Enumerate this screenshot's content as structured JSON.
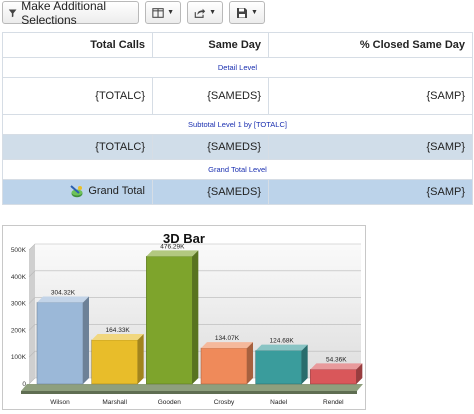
{
  "toolbar": {
    "make_selections_label": "Make Additional Selections",
    "layout_icon": "columns-icon",
    "share_icon": "share-icon",
    "save_icon": "save-icon"
  },
  "table": {
    "headers": [
      "Total Calls",
      "Same Day",
      "% Closed Same Day"
    ],
    "detail_level_label": "Detail Level",
    "detail_row": [
      "{TOTALC}",
      "{SAMEDS}",
      "{SAMP}"
    ],
    "subtotal_level_label": "Subtotal Level 1 by [TOTALC]",
    "subtotal_row": [
      "{TOTALC}",
      "{SAMEDS}",
      "{SAMP}"
    ],
    "grand_total_level_label": "Grand Total Level",
    "grand_total_label": "Grand Total",
    "grand_total_row": [
      "{SAMEDS}",
      "{SAMP}"
    ]
  },
  "chart_data": {
    "type": "bar",
    "title": "3D Bar",
    "categories": [
      "Wilson",
      "Marshall",
      "Gooden",
      "Crosby",
      "Nadel",
      "Rendel"
    ],
    "values": [
      304320,
      164330,
      476290,
      134070,
      124680,
      54360
    ],
    "data_labels": [
      "304.32K",
      "164.33K",
      "476.29K",
      "134.07K",
      "124.68K",
      "54.36K"
    ],
    "y_ticks": [
      "0",
      "100K",
      "200K",
      "300K",
      "400K",
      "500K"
    ],
    "ylim": [
      0,
      500000
    ],
    "grid": true,
    "colors": [
      "#9bb8d8",
      "#e8bd2a",
      "#7ea42c",
      "#ef8a5a",
      "#3a9c9c",
      "#d9575a"
    ]
  }
}
